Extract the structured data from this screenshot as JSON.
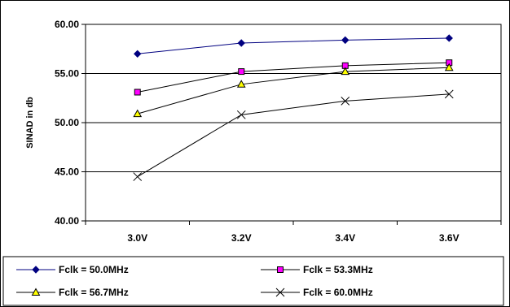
{
  "chart_data": {
    "type": "line",
    "title": "",
    "xlabel": "",
    "ylabel": "SINAD in db",
    "categories": [
      "3.0V",
      "3.2V",
      "3.4V",
      "3.6V"
    ],
    "ylim": [
      40,
      60
    ],
    "yticks": [
      "40.00",
      "45.00",
      "50.00",
      "55.00",
      "60.00"
    ],
    "grid": "horizontal",
    "legend_position": "bottom",
    "series": [
      {
        "name": "Fclk = 50.0MHz",
        "values": [
          57.0,
          58.1,
          58.4,
          58.6
        ],
        "color": "#000080",
        "marker": "diamond"
      },
      {
        "name": "Fclk = 53.3MHz",
        "values": [
          53.1,
          55.2,
          55.8,
          56.1
        ],
        "color": "#ff00ff",
        "marker": "square"
      },
      {
        "name": "Fclk = 56.7MHz",
        "values": [
          50.9,
          53.9,
          55.2,
          55.6
        ],
        "color": "#ffff00",
        "marker": "triangle"
      },
      {
        "name": "Fclk = 60.0MHz",
        "values": [
          44.5,
          50.8,
          52.2,
          52.9
        ],
        "color": "#000000",
        "marker": "x"
      }
    ]
  }
}
